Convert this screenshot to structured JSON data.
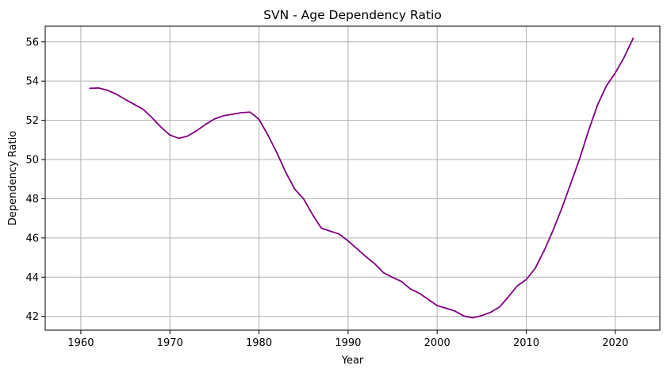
{
  "chart_data": {
    "type": "line",
    "title": "SVN - Age Dependency Ratio",
    "xlabel": "Year",
    "ylabel": "Dependency Ratio",
    "xlim": [
      1956,
      2025
    ],
    "ylim": [
      41.3,
      56.8
    ],
    "xticks": [
      1960,
      1970,
      1980,
      1990,
      2000,
      2010,
      2020
    ],
    "yticks": [
      42,
      44,
      46,
      48,
      50,
      52,
      54,
      56
    ],
    "grid": true,
    "line_color": "#800080",
    "series": [
      {
        "x": [
          1961,
          1962,
          1963,
          1964,
          1965,
          1966,
          1967,
          1968,
          1969,
          1970,
          1971,
          1972,
          1973,
          1974,
          1975,
          1976,
          1977,
          1978,
          1979,
          1980,
          1981,
          1982,
          1983,
          1984,
          1985,
          1986,
          1987,
          1988,
          1989,
          1990,
          1991,
          1992,
          1993,
          1994,
          1995,
          1996,
          1997,
          1998,
          1999,
          2000,
          2001,
          2002,
          2003,
          2004,
          2005,
          2006,
          2007,
          2008,
          2009,
          2010,
          2011,
          2012,
          2013,
          2014,
          2015,
          2016,
          2017,
          2018,
          2019,
          2020,
          2021,
          2022
        ],
        "values": [
          53.63,
          53.65,
          53.53,
          53.33,
          53.06,
          52.81,
          52.56,
          52.13,
          51.65,
          51.25,
          51.08,
          51.2,
          51.47,
          51.79,
          52.07,
          52.23,
          52.31,
          52.39,
          52.42,
          52.05,
          51.25,
          50.35,
          49.35,
          48.5,
          48.0,
          47.2,
          46.5,
          46.35,
          46.2,
          45.85,
          45.45,
          45.05,
          44.68,
          44.22,
          43.99,
          43.78,
          43.4,
          43.18,
          42.87,
          42.55,
          42.42,
          42.27,
          42.02,
          41.93,
          42.04,
          42.21,
          42.48,
          43.0,
          43.56,
          43.88,
          44.45,
          45.35,
          46.38,
          47.52,
          48.78,
          50.05,
          51.48,
          52.78,
          53.76,
          54.42,
          55.22,
          56.18
        ]
      }
    ]
  }
}
